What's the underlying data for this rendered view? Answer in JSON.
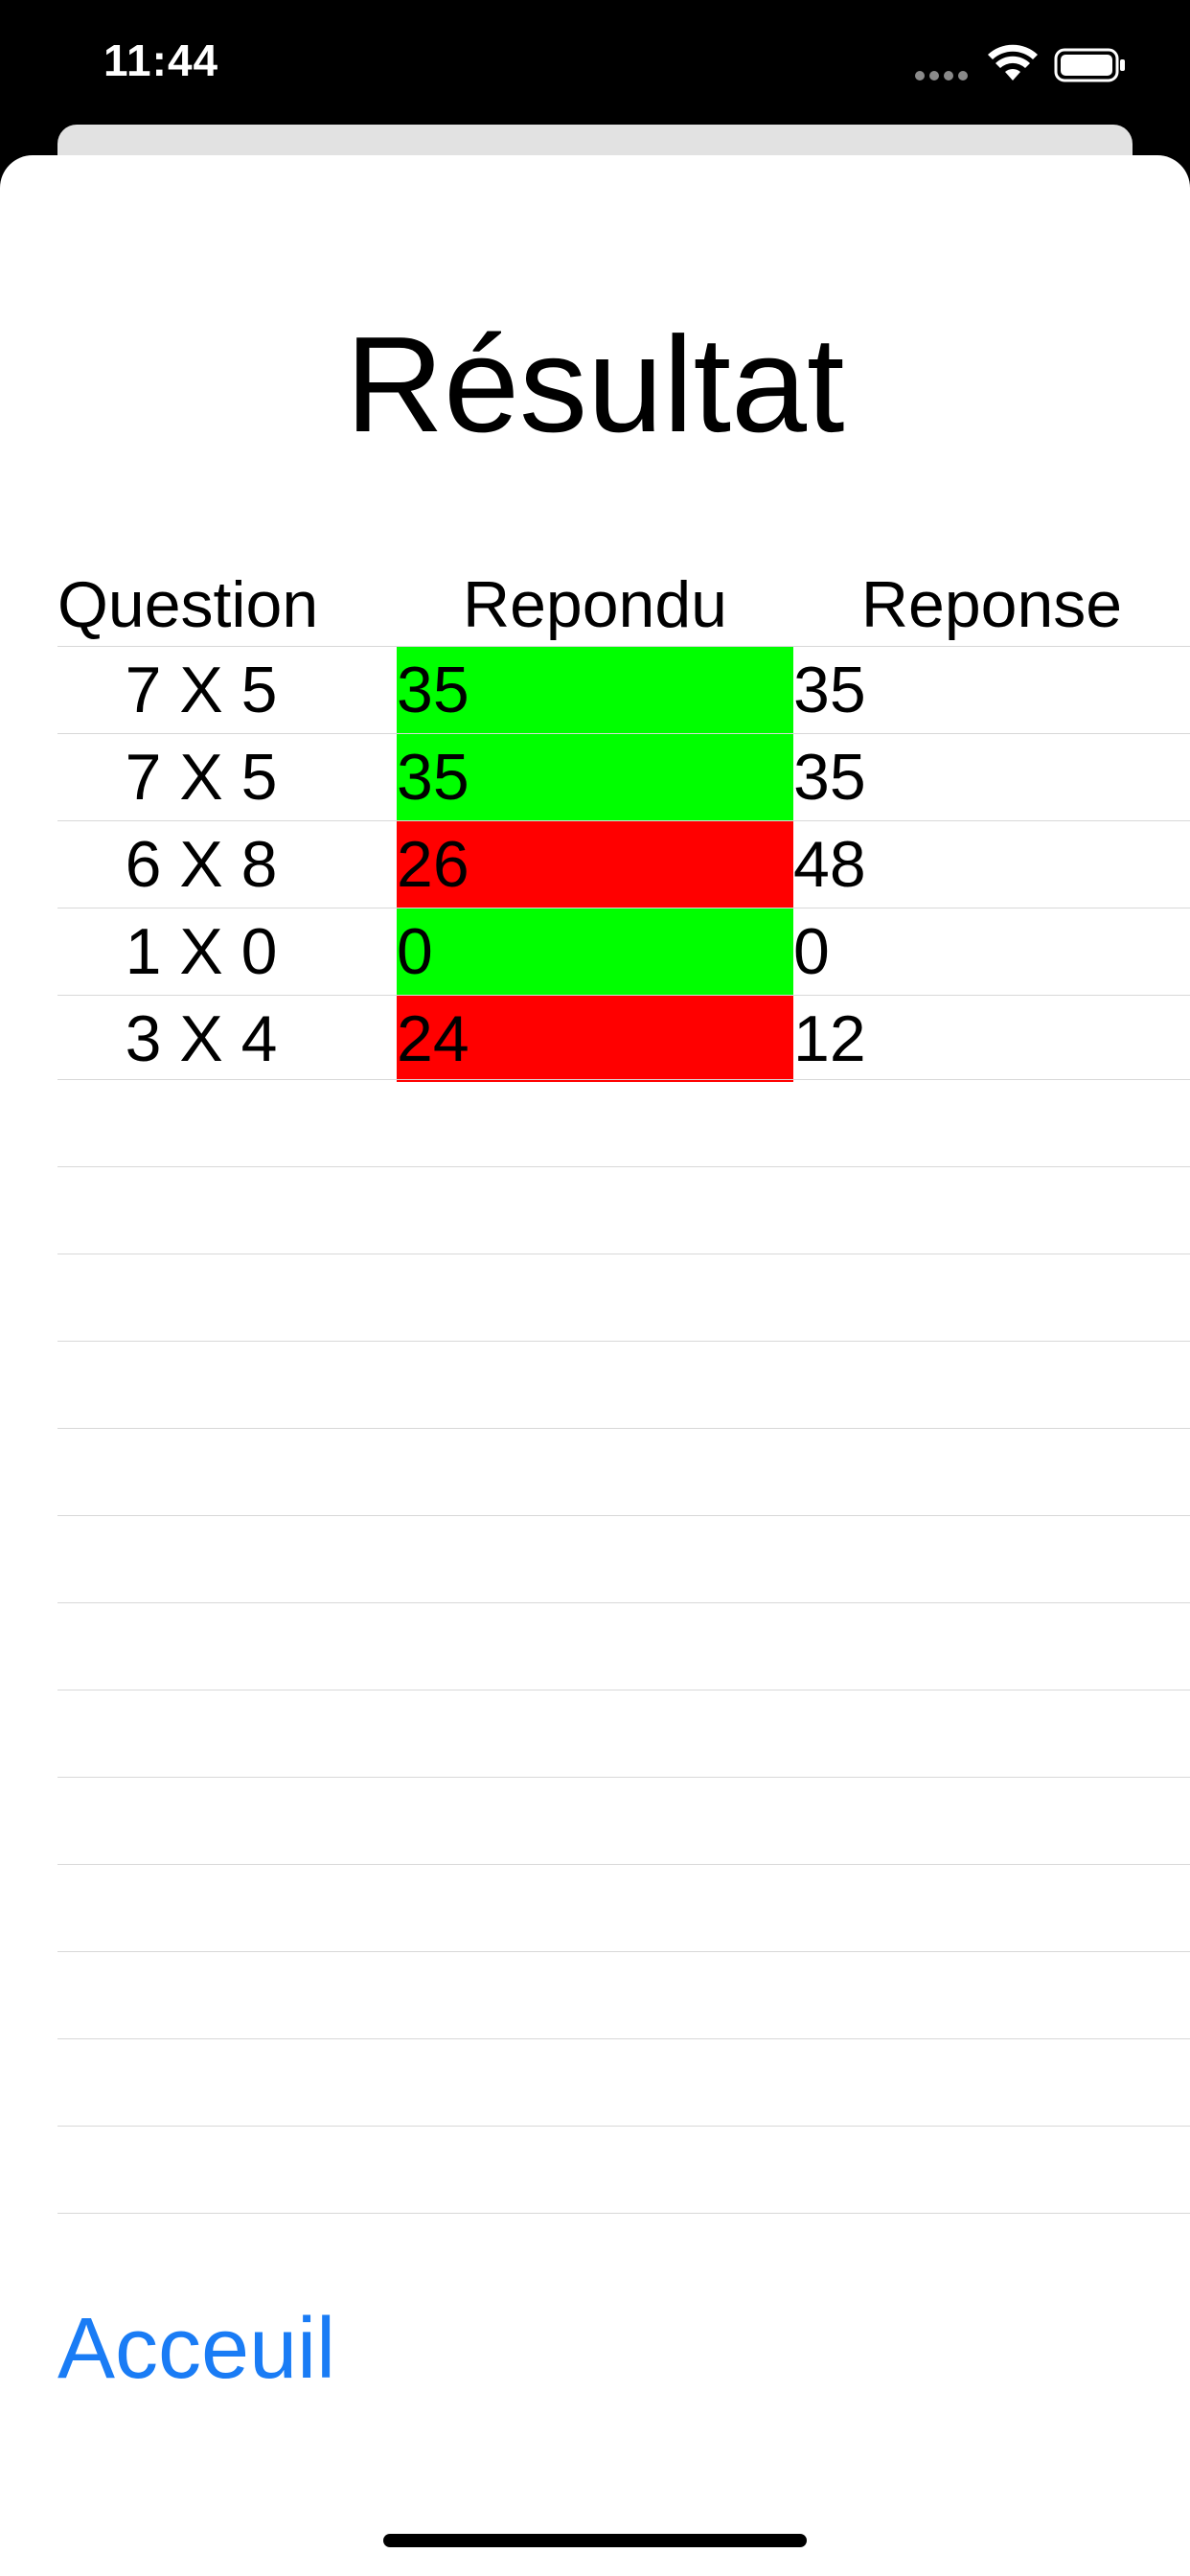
{
  "status_bar": {
    "time": "11:44"
  },
  "page": {
    "title": "Résultat"
  },
  "table": {
    "headers": {
      "question": "Question",
      "answered": "Repondu",
      "answer": "Reponse"
    },
    "rows": [
      {
        "question": "7 X 5",
        "answered": "35",
        "answer": "35",
        "correct": true
      },
      {
        "question": "7 X 5",
        "answered": "35",
        "answer": "35",
        "correct": true
      },
      {
        "question": "6 X 8",
        "answered": "26",
        "answer": "48",
        "correct": false
      },
      {
        "question": "1 X 0",
        "answered": "0",
        "answer": "0",
        "correct": true
      },
      {
        "question": "3 X 4",
        "answered": "24",
        "answer": "12",
        "correct": false
      }
    ]
  },
  "footer": {
    "home_label": "Acceuil"
  },
  "colors": {
    "correct": "#00ff00",
    "incorrect": "#ff0000",
    "link": "#1a7cf5"
  },
  "icons": [
    "wifi-icon",
    "battery-icon",
    "signal-icon"
  ]
}
